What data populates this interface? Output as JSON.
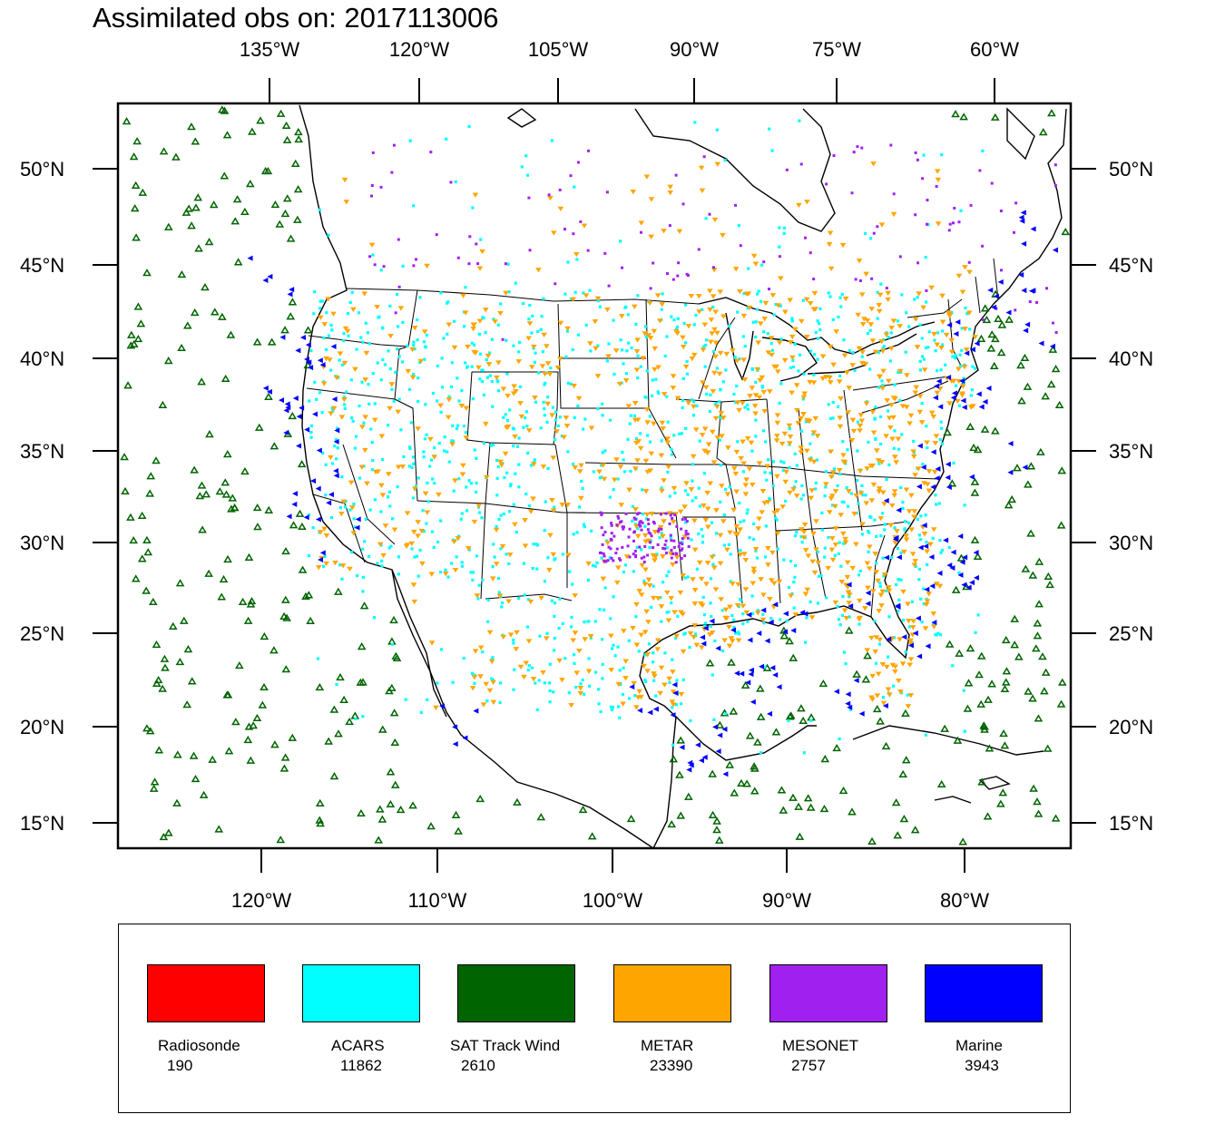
{
  "title": "Assimilated obs on: 2017113006",
  "top_lon_labels": [
    "135°W",
    "120°W",
    "105°W",
    "90°W",
    "75°W",
    "60°W"
  ],
  "bottom_lon_labels": [
    "120°W",
    "110°W",
    "100°W",
    "90°W",
    "80°W"
  ],
  "lat_labels": [
    "50°N",
    "45°N",
    "40°N",
    "35°N",
    "30°N",
    "25°N",
    "20°N",
    "15°N"
  ],
  "legend": [
    {
      "label": "Radiosonde",
      "count": "190",
      "color": "#ff0000"
    },
    {
      "label": "ACARS",
      "count": "11862",
      "color": "#00ffff"
    },
    {
      "label": "SAT Track Wind",
      "count": "2610",
      "color": "#006400"
    },
    {
      "label": "METAR",
      "count": "23390",
      "color": "#ffa500"
    },
    {
      "label": "MESONET",
      "count": "2757",
      "color": "#a020f0"
    },
    {
      "label": "Marine",
      "count": "3943",
      "color": "#0000ff"
    }
  ]
}
